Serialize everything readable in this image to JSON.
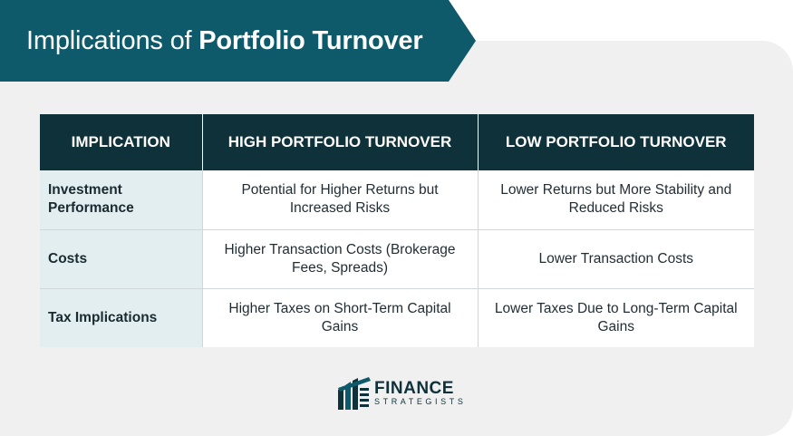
{
  "header": {
    "title_prefix": "Implications of ",
    "title_bold": "Portfolio Turnover"
  },
  "table": {
    "columns": [
      "IMPLICATION",
      "HIGH PORTFOLIO TURNOVER",
      "LOW PORTFOLIO TURNOVER"
    ],
    "rows": [
      {
        "label": "Investment Performance",
        "high": "Potential for Higher Returns but Increased Risks",
        "low": "Lower Returns but More Stability and Reduced Risks"
      },
      {
        "label": "Costs",
        "high": "Higher Transaction Costs (Brokerage Fees, Spreads)",
        "low": "Lower Transaction Costs"
      },
      {
        "label": "Tax Implications",
        "high": "Higher Taxes on Short-Term Capital Gains",
        "low": "Lower Taxes Due to Long-Term Capital Gains"
      }
    ]
  },
  "logo": {
    "line1": "FINANCE",
    "line2": "STRATEGISTS",
    "icon": "finance-strategists-logo-icon"
  },
  "colors": {
    "banner": "#0e5a6b",
    "header_row": "#0f3139",
    "label_cell": "#e3eef0",
    "card": "#f0f0f0"
  }
}
